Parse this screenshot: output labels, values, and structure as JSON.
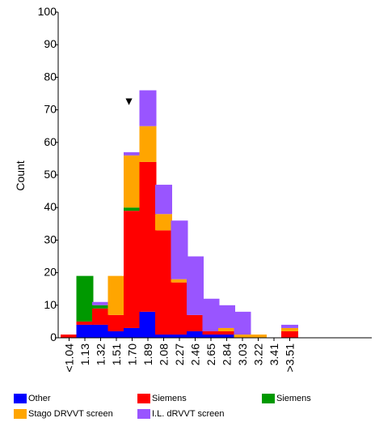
{
  "chart_data": {
    "type": "bar",
    "stacked": true,
    "ylabel": "Count",
    "xlabel": "",
    "ylim": [
      0,
      100
    ],
    "yticks": [
      0,
      10,
      20,
      30,
      40,
      50,
      60,
      70,
      80,
      90,
      100
    ],
    "grid": false,
    "legend_position": "bottom",
    "categories": [
      "<1.04",
      "1.13",
      "1.32",
      "1.51",
      "1.70",
      "1.89",
      "2.08",
      "2.27",
      "2.46",
      "2.65",
      "2.84",
      "3.03",
      "3.22",
      "3.41",
      ">3.51"
    ],
    "marker": {
      "category": "1.70",
      "symbol": "▼"
    },
    "series": [
      {
        "name": "Other",
        "color": "#0000ff",
        "values": [
          0,
          4,
          4,
          2,
          3,
          8,
          1,
          1,
          2,
          1,
          1,
          0,
          0,
          0,
          0
        ]
      },
      {
        "name": "Siemens",
        "color": "#ff0000",
        "values": [
          1,
          1,
          5,
          5,
          36,
          46,
          32,
          16,
          5,
          1,
          1,
          0,
          0,
          0,
          2
        ]
      },
      {
        "name": "Siemens",
        "color": "#009900",
        "values": [
          0,
          14,
          1,
          0,
          1,
          0,
          0,
          0,
          0,
          0,
          0,
          0,
          0,
          0,
          0
        ]
      },
      {
        "name": "Stago DRVVT screen",
        "color": "#ffa500",
        "values": [
          0,
          0,
          0,
          12,
          16,
          11,
          5,
          1,
          0,
          0,
          1,
          1,
          1,
          0,
          1
        ]
      },
      {
        "name": "I.L. dRVVT screen",
        "color": "#9955ff",
        "values": [
          0,
          0,
          1,
          0,
          1,
          11,
          9,
          18,
          18,
          10,
          7,
          7,
          0,
          0,
          1
        ]
      }
    ]
  }
}
